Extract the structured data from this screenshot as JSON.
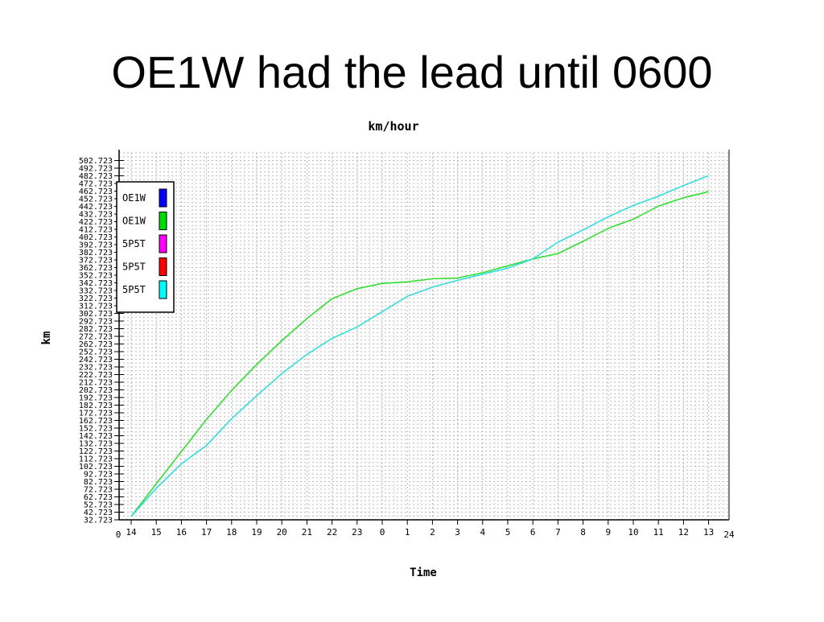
{
  "slide": {
    "title": "OE1W had the lead until 0600"
  },
  "chart_data": {
    "type": "line",
    "title": "km/hour",
    "xlabel": "Time",
    "ylabel": "km",
    "x_edge_labels": {
      "left": "0",
      "right": "24"
    },
    "x_ticks": [
      "14",
      "15",
      "16",
      "17",
      "18",
      "19",
      "20",
      "21",
      "22",
      "23",
      "0",
      "1",
      "2",
      "3",
      "4",
      "5",
      "6",
      "7",
      "8",
      "9",
      "10",
      "11",
      "12",
      "13"
    ],
    "y_ticks": [
      "32.723",
      "42.723",
      "52.723",
      "62.723",
      "72.723",
      "82.723",
      "92.723",
      "102.723",
      "112.723",
      "122.723",
      "132.723",
      "142.723",
      "152.723",
      "162.723",
      "172.723",
      "182.723",
      "192.723",
      "202.723",
      "212.723",
      "222.723",
      "232.723",
      "242.723",
      "252.723",
      "262.723",
      "272.723",
      "282.723",
      "292.723",
      "302.723",
      "312.723",
      "322.723",
      "332.723",
      "342.723",
      "352.723",
      "362.723",
      "372.723",
      "382.723",
      "392.723",
      "402.723",
      "412.723",
      "422.723",
      "432.723",
      "442.723",
      "452.723",
      "462.723",
      "472.723",
      "482.723",
      "492.723",
      "502.723"
    ],
    "ylim": [
      32.723,
      512.723
    ],
    "grid": true,
    "legend_position": "top-left",
    "legend": [
      {
        "name": "OE1W",
        "color": "#0000ff"
      },
      {
        "name": "OE1W",
        "color": "#00dd00"
      },
      {
        "name": "5P5T",
        "color": "#ff00ff"
      },
      {
        "name": "5P5T",
        "color": "#ff0000"
      },
      {
        "name": "5P5T",
        "color": "#00ffff"
      }
    ],
    "series": [
      {
        "name": "OE1W",
        "color": "#33dd33",
        "points": [
          [
            0,
            37
          ],
          [
            1,
            80
          ],
          [
            2,
            122
          ],
          [
            3,
            164
          ],
          [
            4,
            202
          ],
          [
            5,
            236
          ],
          [
            6,
            267
          ],
          [
            7,
            296
          ],
          [
            8,
            322
          ],
          [
            9,
            335
          ],
          [
            10,
            342
          ],
          [
            11,
            344
          ],
          [
            12,
            348
          ],
          [
            13,
            349
          ],
          [
            14,
            356
          ],
          [
            15,
            365
          ],
          [
            16,
            374
          ],
          [
            17,
            381
          ],
          [
            18,
            397
          ],
          [
            19,
            414
          ],
          [
            20,
            426
          ],
          [
            21,
            443
          ],
          [
            22,
            454
          ],
          [
            23,
            462
          ]
        ]
      },
      {
        "name": "5P5T",
        "color": "#33dddd",
        "points": [
          [
            0,
            37
          ],
          [
            1,
            74
          ],
          [
            2,
            106
          ],
          [
            3,
            130
          ],
          [
            4,
            165
          ],
          [
            5,
            195
          ],
          [
            6,
            224
          ],
          [
            7,
            249
          ],
          [
            8,
            270
          ],
          [
            9,
            285
          ],
          [
            10,
            305
          ],
          [
            11,
            325
          ],
          [
            12,
            337
          ],
          [
            13,
            346
          ],
          [
            14,
            354
          ],
          [
            15,
            362
          ],
          [
            16,
            374
          ],
          [
            17,
            396
          ],
          [
            18,
            412
          ],
          [
            19,
            429
          ],
          [
            20,
            444
          ],
          [
            21,
            456
          ],
          [
            22,
            470
          ],
          [
            23,
            483
          ]
        ]
      }
    ]
  }
}
